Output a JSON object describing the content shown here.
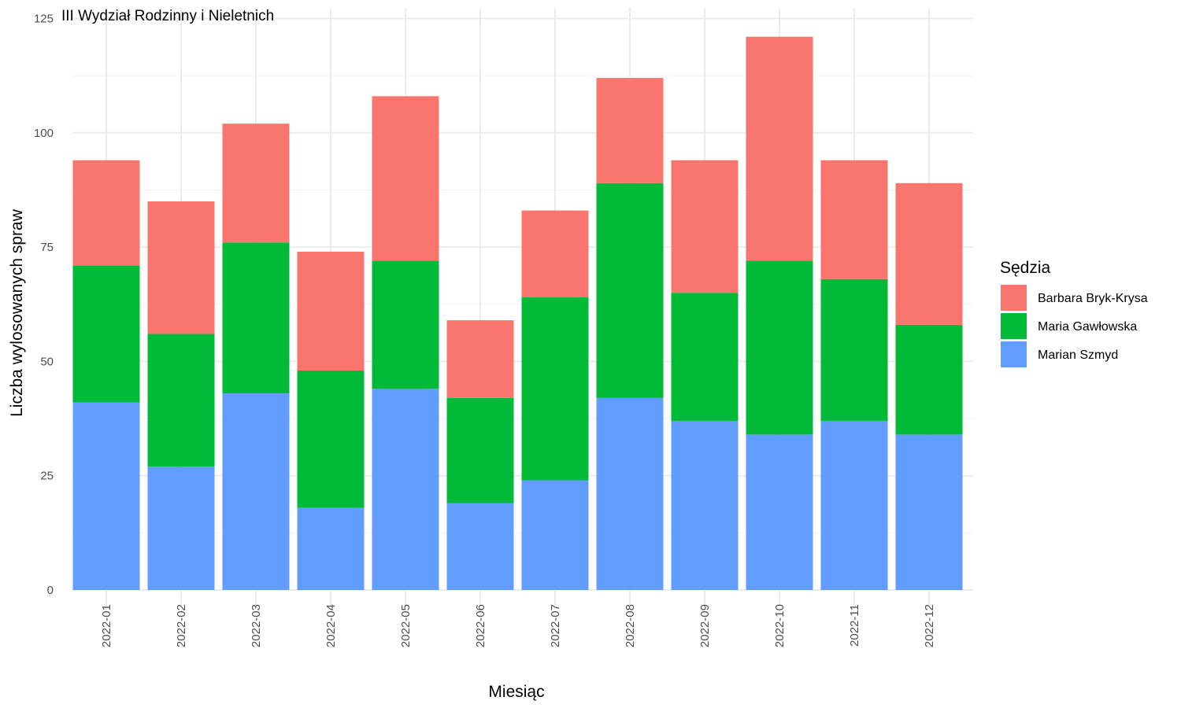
{
  "chart_data": {
    "type": "bar",
    "stacked": true,
    "title": "III Wydział Rodzinny i Nieletnich",
    "xlabel": "Miesiąc",
    "ylabel": "Liczba wylosowanych spraw",
    "ylim": [
      0,
      125
    ],
    "yticks": [
      0,
      25,
      50,
      75,
      100,
      125
    ],
    "grid": true,
    "legend_title": "Sędzia",
    "legend_position": "right",
    "categories": [
      "2022-01",
      "2022-02",
      "2022-03",
      "2022-04",
      "2022-05",
      "2022-06",
      "2022-07",
      "2022-08",
      "2022-09",
      "2022-10",
      "2022-11",
      "2022-12"
    ],
    "series": [
      {
        "name": "Marian Szmyd",
        "color": "#619CFF",
        "values": [
          41,
          27,
          43,
          18,
          44,
          19,
          24,
          42,
          37,
          34,
          37,
          34
        ]
      },
      {
        "name": "Maria Gawłowska",
        "color": "#00BA38",
        "values": [
          30,
          29,
          33,
          30,
          28,
          23,
          40,
          47,
          28,
          38,
          31,
          24
        ]
      },
      {
        "name": "Barbara Bryk-Krysa",
        "color": "#F8766D",
        "values": [
          23,
          29,
          26,
          26,
          36,
          17,
          19,
          23,
          29,
          49,
          26,
          31
        ]
      }
    ],
    "legend_order": [
      "Barbara Bryk-Krysa",
      "Maria Gawłowska",
      "Marian Szmyd"
    ]
  }
}
